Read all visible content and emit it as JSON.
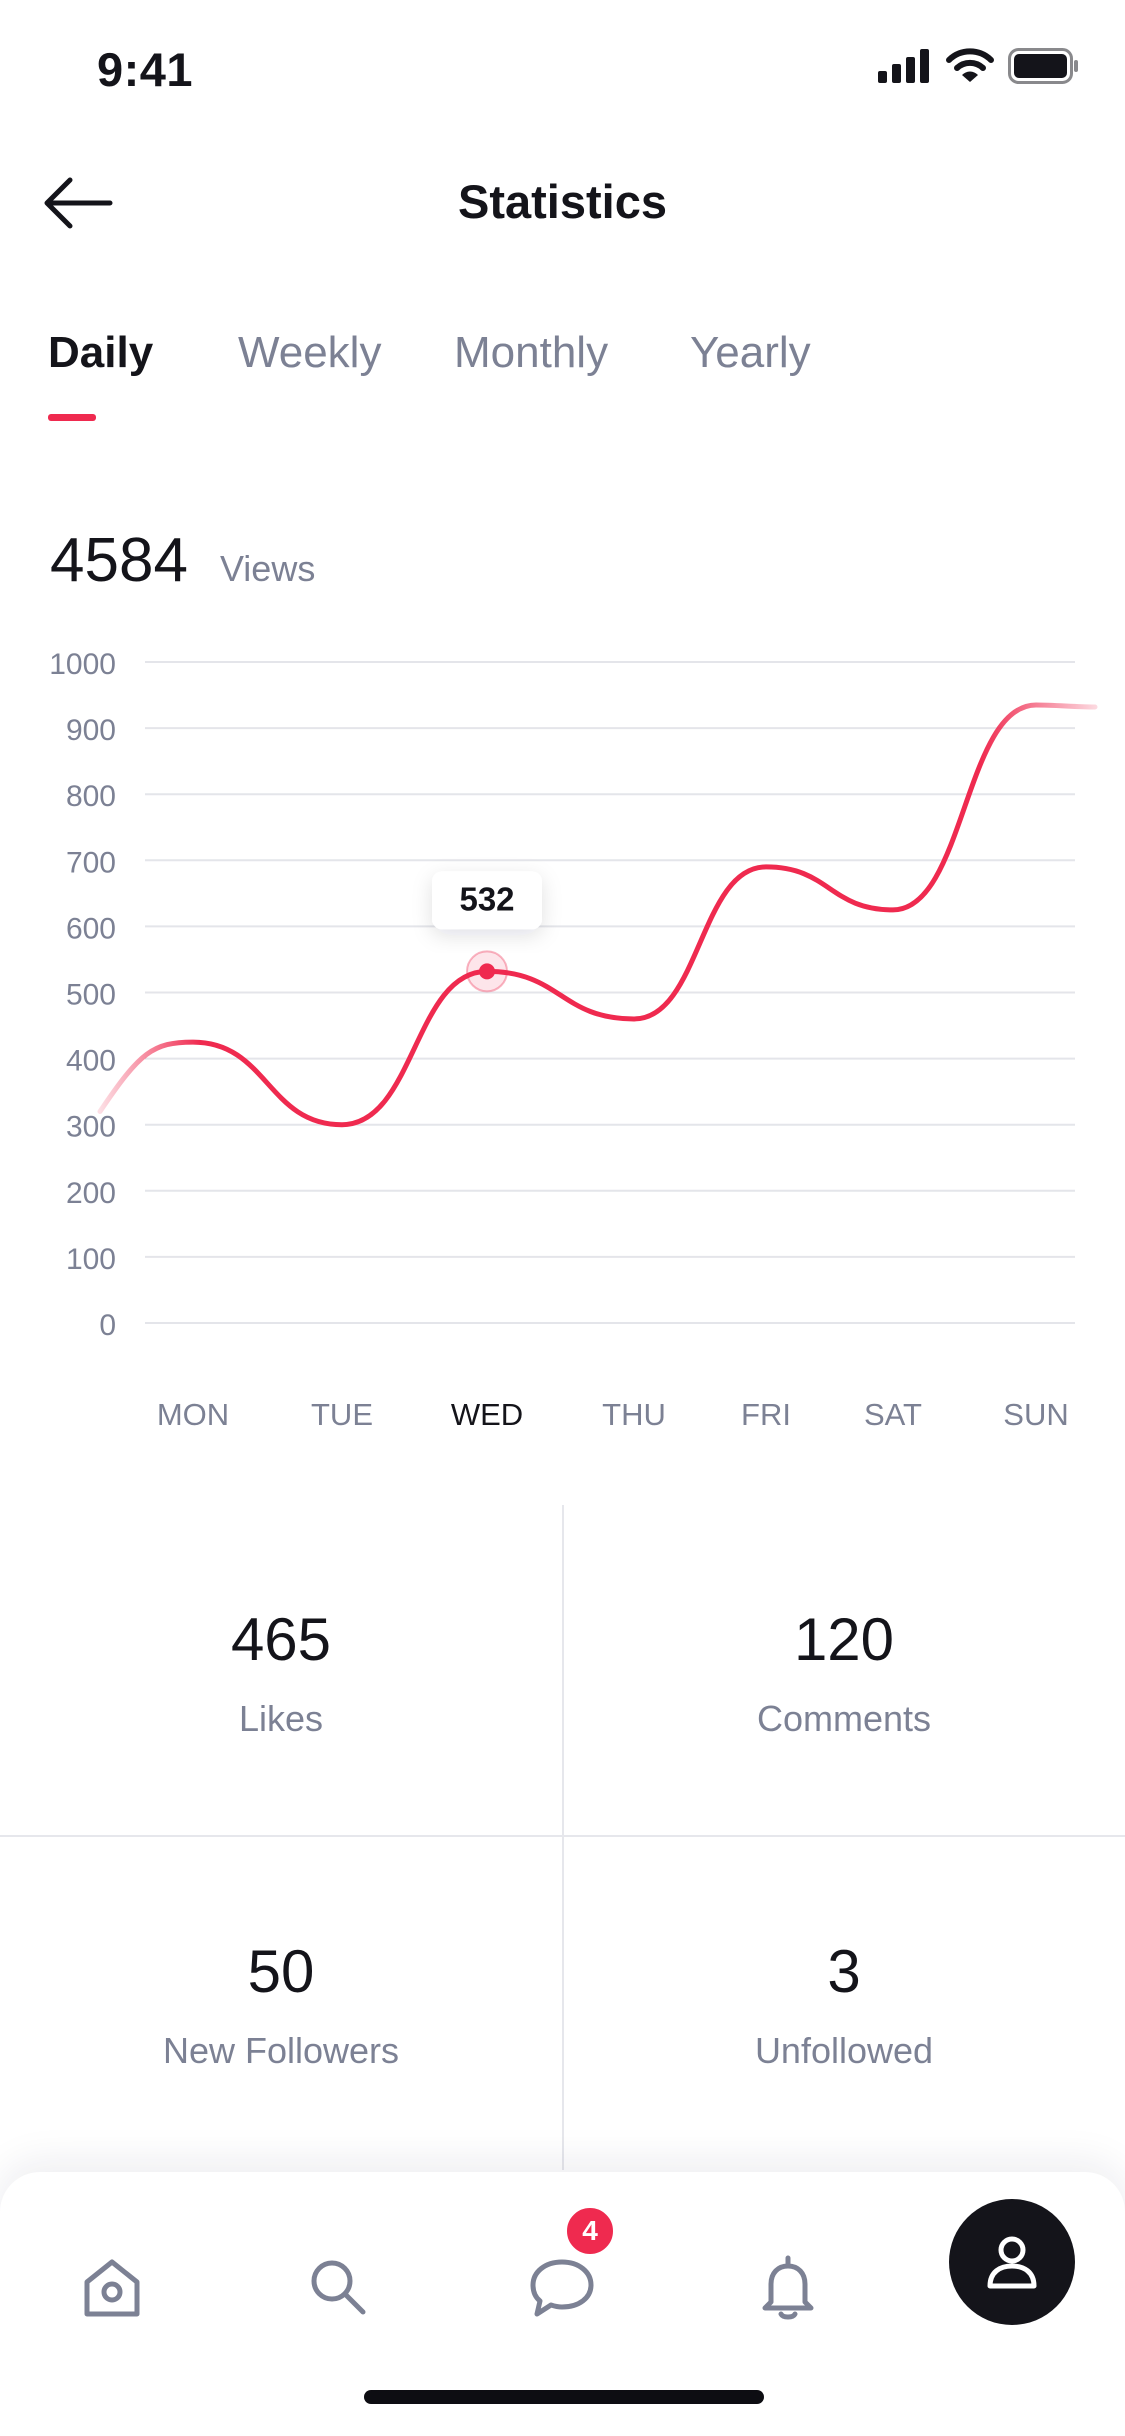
{
  "status_bar": {
    "time": "9:41"
  },
  "header": {
    "title": "Statistics"
  },
  "tabs": [
    {
      "label": "Daily",
      "active": true
    },
    {
      "label": "Weekly",
      "active": false
    },
    {
      "label": "Monthly",
      "active": false
    },
    {
      "label": "Yearly",
      "active": false
    }
  ],
  "summary": {
    "value": "4584",
    "label": "Views"
  },
  "chart_data": {
    "type": "line",
    "categories": [
      "MON",
      "TUE",
      "WED",
      "THU",
      "FRI",
      "SAT",
      "SUN"
    ],
    "values": [
      425,
      300,
      532,
      460,
      690,
      625,
      935
    ],
    "yticks": [
      1000,
      900,
      800,
      700,
      600,
      500,
      400,
      300,
      200,
      100,
      0
    ],
    "ylim": [
      0,
      1000
    ],
    "highlight": {
      "category": "WED",
      "value": 532,
      "label": "532"
    },
    "line_color": "#ef2a4f",
    "grid": true
  },
  "stats": [
    {
      "value": "465",
      "label": "Likes"
    },
    {
      "value": "120",
      "label": "Comments"
    },
    {
      "value": "50",
      "label": "New Followers"
    },
    {
      "value": "3",
      "label": "Unfollowed"
    }
  ],
  "nav": {
    "items": [
      "home-icon",
      "search-icon",
      "chat-icon",
      "bell-icon",
      "profile-icon"
    ],
    "chat_badge": "4"
  },
  "colors": {
    "accent": "#ef2a4f",
    "text": "#14141a",
    "muted": "#7c8194"
  }
}
